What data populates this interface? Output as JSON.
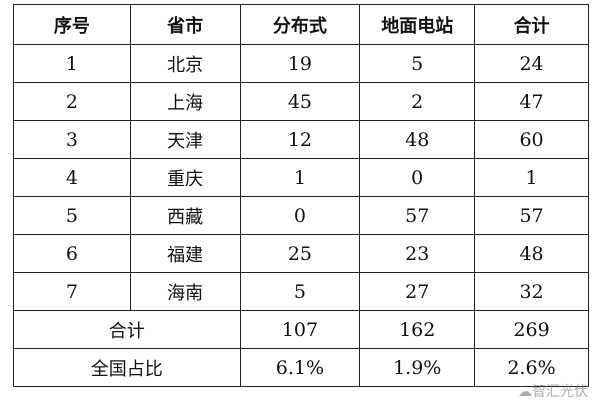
{
  "table": {
    "headers": [
      "序号",
      "省市",
      "分布式",
      "地面电站",
      "合计"
    ],
    "rows": [
      [
        "1",
        "北京",
        "19",
        "5",
        "24"
      ],
      [
        "2",
        "上海",
        "45",
        "2",
        "47"
      ],
      [
        "3",
        "天津",
        "12",
        "48",
        "60"
      ],
      [
        "4",
        "重庆",
        "1",
        "0",
        "1"
      ],
      [
        "5",
        "西藏",
        "0",
        "57",
        "57"
      ],
      [
        "6",
        "福建",
        "25",
        "23",
        "48"
      ],
      [
        "7",
        "海南",
        "5",
        "27",
        "32"
      ]
    ],
    "total": {
      "label": "合计",
      "values": [
        "107",
        "162",
        "269"
      ]
    },
    "share": {
      "label": "全国占比",
      "values": [
        "6.1%",
        "1.9%",
        "2.6%"
      ]
    }
  },
  "watermark": "智汇光伏"
}
